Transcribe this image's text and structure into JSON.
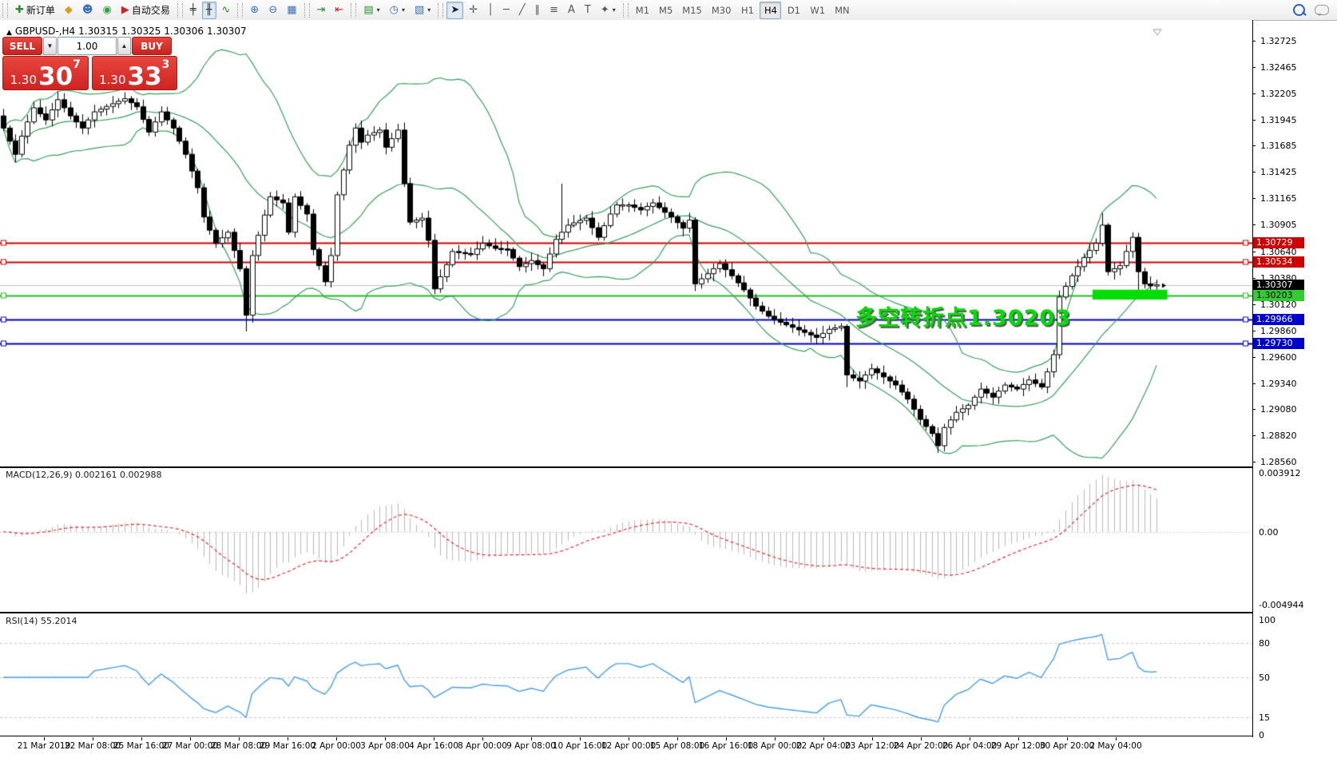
{
  "toolbar": {
    "groups": [
      {
        "name": "trade",
        "items": [
          {
            "name": "new-order",
            "glyph": "✚",
            "glyph_color": "#2e8b2e",
            "label": "新订单"
          },
          {
            "name": "market-watch",
            "glyph": "◆",
            "glyph_color": "#d4a017"
          },
          {
            "name": "expert-advisors",
            "glyph": "☻",
            "glyph_color": "#3b6fb5"
          },
          {
            "name": "signals",
            "glyph": "◉",
            "glyph_color": "#2e9e3f"
          },
          {
            "name": "auto-trading",
            "glyph": "▶",
            "glyph_color": "#c62828",
            "label": "自动交易"
          }
        ]
      },
      {
        "name": "chart-type",
        "items": [
          {
            "name": "bar-chart",
            "glyph": "╪",
            "glyph_color": "#333333"
          },
          {
            "name": "candlestick-chart",
            "glyph": "╫",
            "glyph_color": "#333333",
            "active": true
          },
          {
            "name": "line-chart",
            "glyph": "∿",
            "glyph_color": "#2e8b2e"
          }
        ]
      },
      {
        "name": "zoom",
        "items": [
          {
            "name": "zoom-in",
            "glyph": "⊕",
            "glyph_color": "#3b6fb5"
          },
          {
            "name": "zoom-out",
            "glyph": "⊖",
            "glyph_color": "#3b6fb5"
          },
          {
            "name": "tile-windows",
            "glyph": "▦",
            "glyph_color": "#3b6fb5"
          }
        ]
      },
      {
        "name": "scroll",
        "items": [
          {
            "name": "auto-scroll",
            "glyph": "⇥",
            "glyph_color": "#2e8b2e"
          },
          {
            "name": "chart-shift",
            "glyph": "⇤",
            "glyph_color": "#c62828"
          }
        ]
      },
      {
        "name": "new",
        "items": [
          {
            "name": "new-chart",
            "glyph": "▤",
            "glyph_color": "#2e8b2e",
            "dropdown": true
          },
          {
            "name": "period",
            "glyph": "◷",
            "glyph_color": "#3b6fb5",
            "dropdown": true
          },
          {
            "name": "templates",
            "glyph": "▧",
            "glyph_color": "#3b6fb5",
            "dropdown": true
          }
        ]
      },
      {
        "name": "tools",
        "items": [
          {
            "name": "cursor",
            "glyph": "➤",
            "glyph_color": "#222222",
            "active": true
          },
          {
            "name": "crosshair",
            "glyph": "✛",
            "glyph_color": "#555555"
          },
          {
            "name": "vertical-line",
            "glyph": "│",
            "glyph_color": "#555555"
          },
          {
            "name": "horizontal-line",
            "glyph": "─",
            "glyph_color": "#555555"
          },
          {
            "name": "trendline",
            "glyph": "╱",
            "glyph_color": "#555555"
          },
          {
            "name": "equidistant-channel",
            "glyph": "∥",
            "glyph_color": "#555555"
          },
          {
            "name": "fibonacci",
            "glyph": "≡",
            "glyph_color": "#555555"
          },
          {
            "name": "text",
            "glyph": "A",
            "glyph_color": "#555555"
          },
          {
            "name": "text-label",
            "glyph": "T",
            "glyph_color": "#555555"
          },
          {
            "name": "arrows",
            "glyph": "✦",
            "glyph_color": "#555555",
            "dropdown": true
          }
        ]
      }
    ],
    "timeframes": {
      "items": [
        "M1",
        "M5",
        "M15",
        "M30",
        "H1",
        "H4",
        "D1",
        "W1",
        "MN"
      ],
      "active": "H4"
    }
  },
  "trade_panel": {
    "sell_label": "SELL",
    "buy_label": "BUY",
    "volume": "1.00",
    "down_glyph": "▼",
    "up_glyph": "▲",
    "sell_price": {
      "small": "1.30",
      "big": "30",
      "sup": "7"
    },
    "buy_price": {
      "small": "1.30",
      "big": "33",
      "sup": "3"
    }
  },
  "chart": {
    "header": {
      "collapse_glyph": "▲",
      "symbol_period": "GBPUSD-,H4",
      "open": "1.30315",
      "high": "1.30325",
      "low": "1.30306",
      "close": "1.30307"
    },
    "annotation": {
      "text": "多空转折点1.30203",
      "color": "#00dd00"
    },
    "price_axis": {
      "ticks": [
        "1.32725",
        "1.32465",
        "1.32205",
        "1.31945",
        "1.31685",
        "1.31425",
        "1.31165",
        "1.30905",
        "1.30640",
        "1.30380",
        "1.30120",
        "1.29860",
        "1.29600",
        "1.29340",
        "1.29080",
        "1.28820",
        "1.28560"
      ],
      "badges": [
        {
          "price": "1.30729",
          "bg": "#cc0000",
          "fg": "#ffffff"
        },
        {
          "price": "1.30534",
          "bg": "#cc0000",
          "fg": "#ffffff"
        },
        {
          "price": "1.30307",
          "bg": "#000000",
          "fg": "#ffffff"
        },
        {
          "price": "1.30203",
          "bg": "#33cc33",
          "fg": "#000000"
        },
        {
          "price": "1.29966",
          "bg": "#0000cc",
          "fg": "#ffffff"
        },
        {
          "price": "1.29730",
          "bg": "#0000cc",
          "fg": "#ffffff"
        }
      ]
    },
    "time_axis": {
      "labels": [
        "21 Mar 2019",
        "22 Mar 08:00",
        "25 Mar 16:00",
        "27 Mar 00:00",
        "28 Mar 08:00",
        "29 Mar 16:00",
        "2 Apr 00:00",
        "3 Apr 08:00",
        "4 Apr 16:00",
        "8 Apr 00:00",
        "9 Apr 08:00",
        "10 Apr 16:00",
        "12 Apr 00:00",
        "15 Apr 08:00",
        "16 Apr 16:00",
        "18 Apr 00:00",
        "22 Apr 04:00",
        "23 Apr 12:00",
        "24 Apr 20:00",
        "26 Apr 04:00",
        "29 Apr 12:00",
        "30 Apr 20:00",
        "2 May 04:00"
      ]
    }
  },
  "indicators": {
    "macd": {
      "label": "MACD(12,26,9)",
      "values": "0.002161 0.002988",
      "axis_max": "0.003912",
      "axis_zero": "0.00",
      "axis_min": "-0.004944",
      "histogram_color": "#b8b8b8",
      "signal_color": "#e03030"
    },
    "rsi": {
      "label": "RSI(14)",
      "value": "55.2014",
      "line_color": "#4a9fe3",
      "levels": [
        80,
        50,
        15
      ],
      "axis": [
        "100",
        "80",
        "50",
        "15",
        "0"
      ]
    }
  },
  "chart_data": {
    "type": "candlestick",
    "symbol": "GBPUSD-",
    "timeframe": "H4",
    "visible_candles": 191,
    "price_axis_range": {
      "top": 1.32928,
      "bottom": 1.28523
    },
    "macd_range": {
      "max": 0.003912,
      "min": -0.004944
    },
    "rsi_range": {
      "max": 100,
      "min": 0
    },
    "close_anchors": [
      [
        0,
        1.3186
      ],
      [
        2,
        1.316
      ],
      [
        3,
        1.3178
      ],
      [
        5,
        1.3206
      ],
      [
        7,
        1.3194
      ],
      [
        9,
        1.3214
      ],
      [
        11,
        1.3198
      ],
      [
        13,
        1.3186
      ],
      [
        15,
        1.3202
      ],
      [
        18,
        1.321
      ],
      [
        20,
        1.3215
      ],
      [
        22,
        1.3207
      ],
      [
        24,
        1.3182
      ],
      [
        26,
        1.3202
      ],
      [
        28,
        1.3186
      ],
      [
        30,
        1.316
      ],
      [
        32,
        1.3127
      ],
      [
        33,
        1.3098
      ],
      [
        35,
        1.3072
      ],
      [
        37,
        1.3083
      ],
      [
        39,
        1.3047
      ],
      [
        40,
        1.3001
      ],
      [
        41,
        1.306
      ],
      [
        43,
        1.31
      ],
      [
        44,
        1.3118
      ],
      [
        46,
        1.3112
      ],
      [
        47,
        1.3083
      ],
      [
        48,
        1.3118
      ],
      [
        50,
        1.3101
      ],
      [
        51,
        1.3066
      ],
      [
        53,
        1.3034
      ],
      [
        54,
        1.306
      ],
      [
        55,
        1.312
      ],
      [
        57,
        1.3169
      ],
      [
        58,
        1.3186
      ],
      [
        59,
        1.3172
      ],
      [
        60,
        1.3179
      ],
      [
        62,
        1.3184
      ],
      [
        63,
        1.3167
      ],
      [
        65,
        1.3184
      ],
      [
        66,
        1.3131
      ],
      [
        67,
        1.3093
      ],
      [
        69,
        1.3097
      ],
      [
        70,
        1.3075
      ],
      [
        71,
        1.3027
      ],
      [
        73,
        1.3051
      ],
      [
        74,
        1.3064
      ],
      [
        77,
        1.3061
      ],
      [
        79,
        1.3072
      ],
      [
        81,
        1.3067
      ],
      [
        83,
        1.3066
      ],
      [
        85,
        1.3049
      ],
      [
        87,
        1.3055
      ],
      [
        89,
        1.3047
      ],
      [
        91,
        1.3076
      ],
      [
        93,
        1.309
      ],
      [
        96,
        1.3097
      ],
      [
        98,
        1.3078
      ],
      [
        100,
        1.3101
      ],
      [
        101,
        1.311
      ],
      [
        103,
        1.311
      ],
      [
        105,
        1.3105
      ],
      [
        107,
        1.3112
      ],
      [
        110,
        1.3098
      ],
      [
        112,
        1.3087
      ],
      [
        113,
        1.3095
      ],
      [
        114,
        1.3032
      ],
      [
        116,
        1.3042
      ],
      [
        118,
        1.3052
      ],
      [
        120,
        1.304
      ],
      [
        122,
        1.3026
      ],
      [
        124,
        1.301
      ],
      [
        126,
        1.3
      ],
      [
        128,
        1.2994
      ],
      [
        130,
        1.2989
      ],
      [
        132,
        1.2984
      ],
      [
        134,
        1.2979
      ],
      [
        136,
        1.2987
      ],
      [
        138,
        1.299
      ],
      [
        139,
        1.2942
      ],
      [
        141,
        1.2936
      ],
      [
        143,
        1.2948
      ],
      [
        145,
        1.294
      ],
      [
        147,
        1.2932
      ],
      [
        149,
        1.2918
      ],
      [
        151,
        1.2898
      ],
      [
        153,
        1.2884
      ],
      [
        154,
        1.2872
      ],
      [
        155,
        1.289
      ],
      [
        157,
        1.2905
      ],
      [
        159,
        1.2912
      ],
      [
        161,
        1.2928
      ],
      [
        163,
        1.292
      ],
      [
        165,
        1.2932
      ],
      [
        167,
        1.2928
      ],
      [
        169,
        1.2937
      ],
      [
        171,
        1.293
      ],
      [
        172,
        1.2945
      ],
      [
        173,
        1.2962
      ],
      [
        174,
        1.3019
      ],
      [
        176,
        1.304
      ],
      [
        178,
        1.3058
      ],
      [
        180,
        1.3072
      ],
      [
        181,
        1.309
      ],
      [
        182,
        1.3044
      ],
      [
        184,
        1.305
      ],
      [
        186,
        1.3078
      ],
      [
        187,
        1.3044
      ],
      [
        188,
        1.3032
      ],
      [
        189,
        1.303
      ],
      [
        190,
        1.3031
      ]
    ],
    "wick_overrides": {
      "40": {
        "low": 1.2985
      },
      "92": {
        "high": 1.3131
      },
      "114": {
        "low": 1.3028
      },
      "139": {
        "low": 1.293
      },
      "154": {
        "low": 1.2866
      },
      "181": {
        "high": 1.3102
      },
      "187": {
        "low": 1.3026
      }
    },
    "bollinger": {
      "period": 20,
      "deviation": 2,
      "color": "#3aa05c"
    },
    "hlines": [
      {
        "price": 1.30729,
        "color": "#d40000",
        "width": 2
      },
      {
        "price": 1.30534,
        "color": "#d40000",
        "width": 2
      },
      {
        "price": 1.30203,
        "color": "#22bb22",
        "width": 2
      },
      {
        "price": 1.29966,
        "color": "#0000cc",
        "width": 2
      },
      {
        "price": 1.2973,
        "color": "#0000cc",
        "width": 2
      }
    ],
    "current_price": {
      "value": 1.30307,
      "line_color": "#c4c4c4"
    },
    "highlight": {
      "from_index": 180,
      "to_index": 191,
      "price_top": 1.30262,
      "price_bottom": 1.30165,
      "color": "#00dd00"
    }
  }
}
